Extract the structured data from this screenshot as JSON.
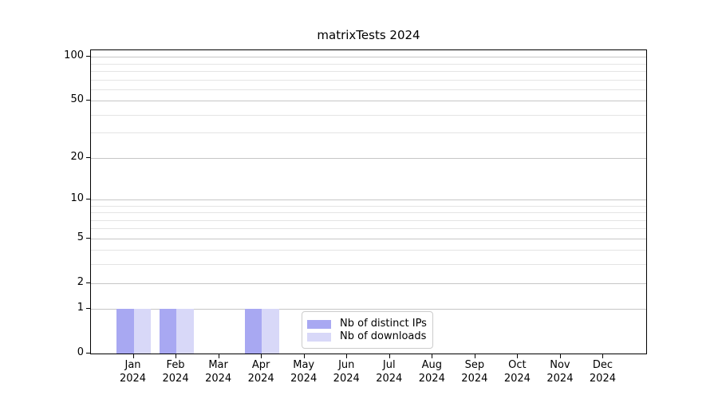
{
  "chart_data": {
    "type": "bar",
    "title": "matrixTests 2024",
    "categories": [
      "Jan 2024",
      "Feb 2024",
      "Mar 2024",
      "Apr 2024",
      "May 2024",
      "Jun 2024",
      "Jul 2024",
      "Aug 2024",
      "Sep 2024",
      "Oct 2024",
      "Nov 2024",
      "Dec 2024"
    ],
    "series": [
      {
        "name": "Nb of distinct IPs",
        "color": "#a8a8f2",
        "values": [
          1,
          1,
          0,
          1,
          0,
          0,
          0,
          0,
          0,
          0,
          0,
          0
        ]
      },
      {
        "name": "Nb of downloads",
        "color": "#d8d8f8",
        "values": [
          1,
          1,
          0,
          1,
          0,
          0,
          0,
          0,
          0,
          0,
          0,
          0
        ]
      }
    ],
    "xlabel": "",
    "ylabel": "",
    "y_scale": "log10(1+value)",
    "ylim": [
      0,
      111
    ],
    "y_axis_ticks": [
      0,
      1,
      2,
      5,
      10,
      20,
      50,
      100
    ],
    "y_minor_gridlines": [
      3,
      4,
      6,
      7,
      8,
      9,
      30,
      40,
      60,
      70,
      80,
      90
    ],
    "grid": "horizontal",
    "legend_position": "inside-bottom-center"
  },
  "colors": {
    "grid_major": "#c6c6c6",
    "grid_minor": "#e4e4e4",
    "axis": "#000000",
    "background": "#ffffff"
  }
}
